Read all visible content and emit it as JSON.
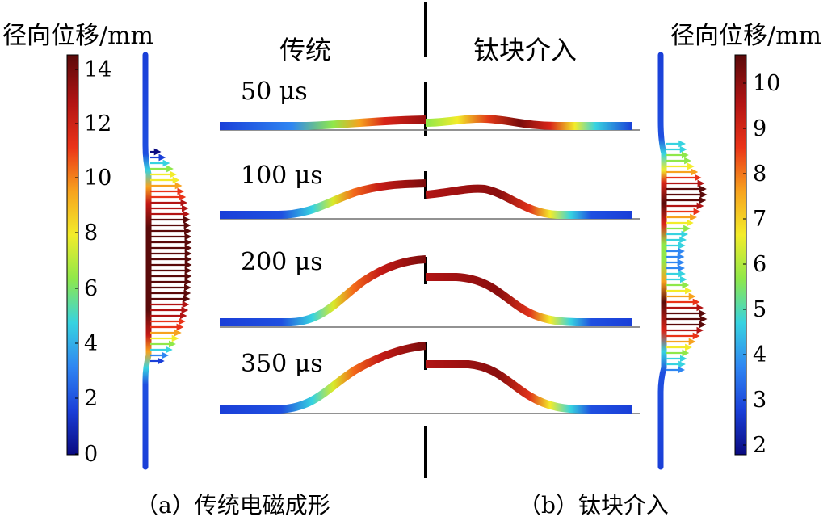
{
  "left_panel": {
    "colorbar_unit": "径向位移/mm",
    "colorbar_ticks": [
      "14",
      "12",
      "10",
      "8",
      "6",
      "4",
      "2",
      "0"
    ],
    "colorbar_range": [
      0,
      14.5
    ],
    "caption": "（a）传统电磁成形"
  },
  "right_panel": {
    "colorbar_unit": "径向位移/mm",
    "colorbar_ticks": [
      "10",
      "9",
      "8",
      "7",
      "6",
      "5",
      "4",
      "3",
      "2"
    ],
    "colorbar_range": [
      1.8,
      10.6
    ],
    "caption": "（b）钛块介入"
  },
  "center": {
    "header_left": "传统",
    "header_right": "钛块介入",
    "time_labels": [
      "50 μs",
      "100 μs",
      "200 μs",
      "350 μs"
    ]
  },
  "colormap": [
    "#0a0a80",
    "#1a3fd8",
    "#2f86f2",
    "#37d3e0",
    "#8fe84a",
    "#f3ec2a",
    "#f7a21e",
    "#ea3318",
    "#b21414",
    "#5a0a0a"
  ]
}
